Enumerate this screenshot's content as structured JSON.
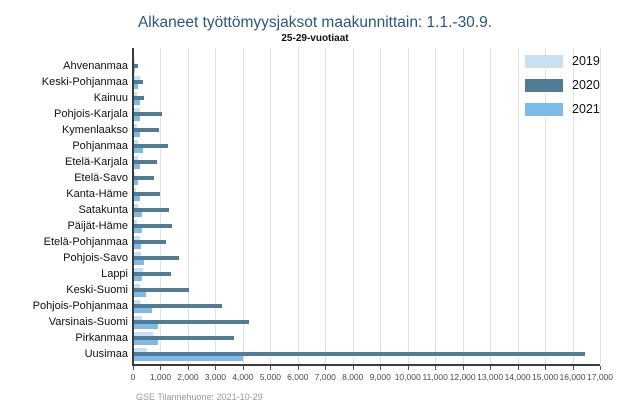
{
  "header": {
    "title": "Alkaneet työttömyysjaksot maakunnittain: 1.1.-30.9.",
    "subtitle": "25-29-vuotiaat"
  },
  "footer": {
    "source": "GSE Tilannehuone: 2021-10-29"
  },
  "legend": {
    "items": [
      {
        "label": "2019",
        "color": "#c9dff2"
      },
      {
        "label": "2020",
        "color": "#527b94"
      },
      {
        "label": "2021",
        "color": "#7cbbe8"
      }
    ]
  },
  "chart_data": {
    "type": "bar",
    "orientation": "horizontal",
    "title": "Alkaneet työttömyysjaksot maakunnittain: 1.1.-30.9.",
    "subtitle": "25-29-vuotiaat",
    "categories": [
      "Ahvenanmaa",
      "Keski-Pohjanmaa",
      "Kainuu",
      "Pohjois-Karjala",
      "Kymenlaakso",
      "Pohjanmaa",
      "Etelä-Karjala",
      "Etelä-Savo",
      "Kanta-Häme",
      "Satakunta",
      "Päijät-Häme",
      "Etelä-Pohjanmaa",
      "Pohjois-Savo",
      "Lappi",
      "Keski-Suomi",
      "Pohjois-Pohjanmaa",
      "Varsinais-Suomi",
      "Pirkanmaa",
      "Uusimaa"
    ],
    "series": [
      {
        "name": "2019",
        "color": "#c9dff2",
        "values": [
          90,
          270,
          160,
          240,
          130,
          200,
          180,
          70,
          100,
          180,
          150,
          250,
          290,
          360,
          250,
          250,
          330,
          730,
          510
        ]
      },
      {
        "name": "2020",
        "color": "#527b94",
        "values": [
          200,
          350,
          400,
          1070,
          930,
          1290,
          860,
          760,
          980,
          1310,
          1420,
          1200,
          1680,
          1380,
          2040,
          3250,
          4240,
          3690,
          16450
        ]
      },
      {
        "name": "2021",
        "color": "#7cbbe8",
        "values": [
          90,
          200,
          250,
          270,
          270,
          350,
          250,
          180,
          250,
          330,
          330,
          290,
          400,
          330,
          470,
          690,
          910,
          910,
          4000
        ]
      }
    ],
    "xlim": [
      0,
      17000
    ],
    "xticks": [
      0,
      1000,
      2000,
      3000,
      4000,
      5000,
      6000,
      7000,
      8000,
      9000,
      10000,
      11000,
      12000,
      13000,
      14000,
      15000,
      16000,
      17000
    ],
    "xtick_labels": [
      "0",
      "1,000",
      "2,000",
      "3,000",
      "4,000",
      "5,000",
      "6,000",
      "7,000",
      "8,000",
      "9,000",
      "10,000",
      "11,000",
      "12,000",
      "13,000",
      "14,000",
      "15,000",
      "16,000",
      "17,000"
    ],
    "grid": true,
    "legend_position": "top-right"
  }
}
